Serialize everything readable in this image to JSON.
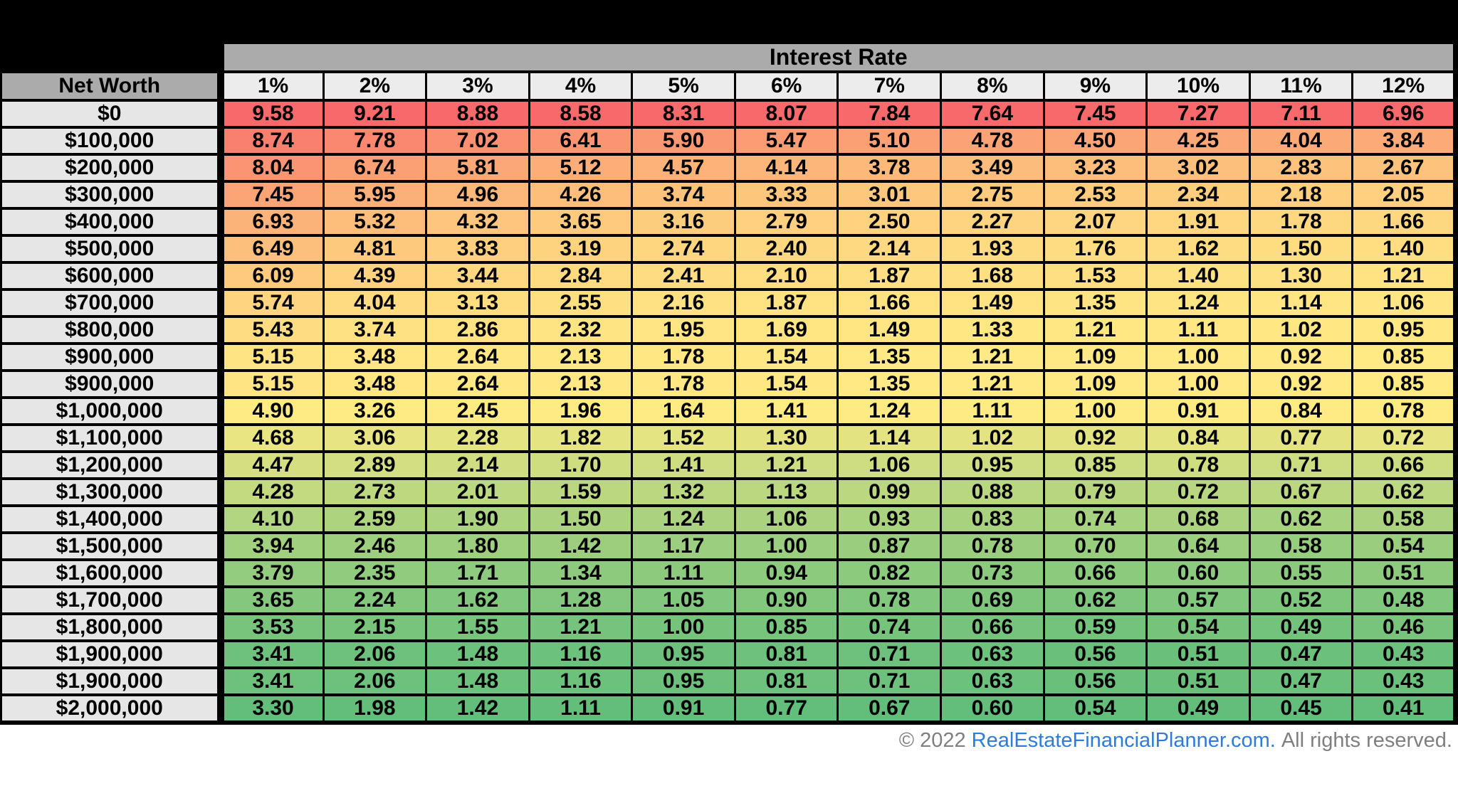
{
  "chart_data": {
    "type": "heatmap",
    "title": "Interest Rate",
    "row_header": "Net Worth",
    "columns": [
      "1%",
      "2%",
      "3%",
      "4%",
      "5%",
      "6%",
      "7%",
      "8%",
      "9%",
      "10%",
      "11%",
      "12%"
    ],
    "rows": [
      "$0",
      "$100,000",
      "$200,000",
      "$300,000",
      "$400,000",
      "$500,000",
      "$600,000",
      "$700,000",
      "$800,000",
      "$900,000",
      "$900,000",
      "$1,000,000",
      "$1,100,000",
      "$1,200,000",
      "$1,300,000",
      "$1,400,000",
      "$1,500,000",
      "$1,600,000",
      "$1,700,000",
      "$1,800,000",
      "$1,900,000",
      "$1,900,000",
      "$2,000,000"
    ],
    "values": [
      [
        "9.58",
        "9.21",
        "8.88",
        "8.58",
        "8.31",
        "8.07",
        "7.84",
        "7.64",
        "7.45",
        "7.27",
        "7.11",
        "6.96"
      ],
      [
        "8.74",
        "7.78",
        "7.02",
        "6.41",
        "5.90",
        "5.47",
        "5.10",
        "4.78",
        "4.50",
        "4.25",
        "4.04",
        "3.84"
      ],
      [
        "8.04",
        "6.74",
        "5.81",
        "5.12",
        "4.57",
        "4.14",
        "3.78",
        "3.49",
        "3.23",
        "3.02",
        "2.83",
        "2.67"
      ],
      [
        "7.45",
        "5.95",
        "4.96",
        "4.26",
        "3.74",
        "3.33",
        "3.01",
        "2.75",
        "2.53",
        "2.34",
        "2.18",
        "2.05"
      ],
      [
        "6.93",
        "5.32",
        "4.32",
        "3.65",
        "3.16",
        "2.79",
        "2.50",
        "2.27",
        "2.07",
        "1.91",
        "1.78",
        "1.66"
      ],
      [
        "6.49",
        "4.81",
        "3.83",
        "3.19",
        "2.74",
        "2.40",
        "2.14",
        "1.93",
        "1.76",
        "1.62",
        "1.50",
        "1.40"
      ],
      [
        "6.09",
        "4.39",
        "3.44",
        "2.84",
        "2.41",
        "2.10",
        "1.87",
        "1.68",
        "1.53",
        "1.40",
        "1.30",
        "1.21"
      ],
      [
        "5.74",
        "4.04",
        "3.13",
        "2.55",
        "2.16",
        "1.87",
        "1.66",
        "1.49",
        "1.35",
        "1.24",
        "1.14",
        "1.06"
      ],
      [
        "5.43",
        "3.74",
        "2.86",
        "2.32",
        "1.95",
        "1.69",
        "1.49",
        "1.33",
        "1.21",
        "1.11",
        "1.02",
        "0.95"
      ],
      [
        "5.15",
        "3.48",
        "2.64",
        "2.13",
        "1.78",
        "1.54",
        "1.35",
        "1.21",
        "1.09",
        "1.00",
        "0.92",
        "0.85"
      ],
      [
        "5.15",
        "3.48",
        "2.64",
        "2.13",
        "1.78",
        "1.54",
        "1.35",
        "1.21",
        "1.09",
        "1.00",
        "0.92",
        "0.85"
      ],
      [
        "4.90",
        "3.26",
        "2.45",
        "1.96",
        "1.64",
        "1.41",
        "1.24",
        "1.11",
        "1.00",
        "0.91",
        "0.84",
        "0.78"
      ],
      [
        "4.68",
        "3.06",
        "2.28",
        "1.82",
        "1.52",
        "1.30",
        "1.14",
        "1.02",
        "0.92",
        "0.84",
        "0.77",
        "0.72"
      ],
      [
        "4.47",
        "2.89",
        "2.14",
        "1.70",
        "1.41",
        "1.21",
        "1.06",
        "0.95",
        "0.85",
        "0.78",
        "0.71",
        "0.66"
      ],
      [
        "4.28",
        "2.73",
        "2.01",
        "1.59",
        "1.32",
        "1.13",
        "0.99",
        "0.88",
        "0.79",
        "0.72",
        "0.67",
        "0.62"
      ],
      [
        "4.10",
        "2.59",
        "1.90",
        "1.50",
        "1.24",
        "1.06",
        "0.93",
        "0.83",
        "0.74",
        "0.68",
        "0.62",
        "0.58"
      ],
      [
        "3.94",
        "2.46",
        "1.80",
        "1.42",
        "1.17",
        "1.00",
        "0.87",
        "0.78",
        "0.70",
        "0.64",
        "0.58",
        "0.54"
      ],
      [
        "3.79",
        "2.35",
        "1.71",
        "1.34",
        "1.11",
        "0.94",
        "0.82",
        "0.73",
        "0.66",
        "0.60",
        "0.55",
        "0.51"
      ],
      [
        "3.65",
        "2.24",
        "1.62",
        "1.28",
        "1.05",
        "0.90",
        "0.78",
        "0.69",
        "0.62",
        "0.57",
        "0.52",
        "0.48"
      ],
      [
        "3.53",
        "2.15",
        "1.55",
        "1.21",
        "1.00",
        "0.85",
        "0.74",
        "0.66",
        "0.59",
        "0.54",
        "0.49",
        "0.46"
      ],
      [
        "3.41",
        "2.06",
        "1.48",
        "1.16",
        "0.95",
        "0.81",
        "0.71",
        "0.63",
        "0.56",
        "0.51",
        "0.47",
        "0.43"
      ],
      [
        "3.41",
        "2.06",
        "1.48",
        "1.16",
        "0.95",
        "0.81",
        "0.71",
        "0.63",
        "0.56",
        "0.51",
        "0.47",
        "0.43"
      ],
      [
        "3.30",
        "1.98",
        "1.42",
        "1.11",
        "0.91",
        "0.77",
        "0.67",
        "0.60",
        "0.54",
        "0.49",
        "0.45",
        "0.41"
      ]
    ],
    "color_scale": {
      "scope": "per-column",
      "midpoint": "percentile-50",
      "min_color": "#63BE7B",
      "mid_color": "#FFEB84",
      "max_color": "#F8696B"
    },
    "legend_position": "none",
    "grid": "on"
  },
  "footer": {
    "copyright": "© 2022",
    "link": "RealEstateFinancialPlanner.com.",
    "rights": "All rights reserved."
  },
  "colors": {
    "band_gray": "#ABABAB",
    "column_header_bg": "#ECECEC",
    "row_label_bg": "#E6E6E6",
    "scale_max_red": "#F8696B",
    "scale_mid_yellow": "#FFEB84",
    "scale_min_green": "#63BE7B",
    "footer_gray": "#7F7F7F",
    "link_blue": "#2E7CD6",
    "black": "#000000",
    "page_bg": "#FFFFFF"
  }
}
